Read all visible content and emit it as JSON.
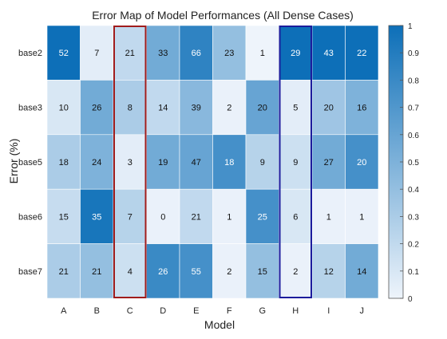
{
  "chart_data": {
    "type": "heatmap",
    "title": "Error Map of Model Performances (All Dense Cases)",
    "xlabel": "Model",
    "ylabel": "Error (%)",
    "columns": [
      "A",
      "B",
      "C",
      "D",
      "E",
      "F",
      "G",
      "H",
      "I",
      "J"
    ],
    "rows": [
      "base2",
      "base3",
      "base5",
      "base6",
      "base7"
    ],
    "values": [
      [
        52,
        7,
        21,
        33,
        66,
        23,
        1,
        29,
        43,
        22
      ],
      [
        10,
        26,
        8,
        14,
        39,
        2,
        20,
        5,
        20,
        16
      ],
      [
        18,
        24,
        3,
        19,
        47,
        18,
        9,
        9,
        27,
        20
      ],
      [
        15,
        35,
        7,
        0,
        21,
        1,
        25,
        6,
        1,
        1
      ],
      [
        21,
        21,
        4,
        26,
        55,
        2,
        15,
        2,
        12,
        14
      ]
    ],
    "color_intensity": [
      [
        1.0,
        0.05,
        0.2,
        0.55,
        0.85,
        0.4,
        0.0,
        1.0,
        1.0,
        1.0
      ],
      [
        0.1,
        0.55,
        0.3,
        0.2,
        0.45,
        0.02,
        0.6,
        0.05,
        0.35,
        0.5
      ],
      [
        0.3,
        0.5,
        0.05,
        0.55,
        0.6,
        0.75,
        0.25,
        0.15,
        0.55,
        0.75
      ],
      [
        0.18,
        0.95,
        0.25,
        0.02,
        0.2,
        0.02,
        0.75,
        0.1,
        0.02,
        0.02
      ],
      [
        0.3,
        0.4,
        0.15,
        0.8,
        0.75,
        0.02,
        0.4,
        0.02,
        0.25,
        0.55
      ]
    ],
    "colorbar": {
      "range": [
        0,
        1
      ],
      "ticks": [
        "0",
        "0.1",
        "0.2",
        "0.3",
        "0.4",
        "0.5",
        "0.6",
        "0.7",
        "0.8",
        "0.9",
        "1"
      ]
    },
    "highlighted_columns": [
      {
        "column": "C",
        "color": "#a01c1c"
      },
      {
        "column": "H",
        "color": "#1c1c9c"
      }
    ],
    "colormap": {
      "low": "#eef4fb",
      "high": "#0d6fb8"
    }
  }
}
